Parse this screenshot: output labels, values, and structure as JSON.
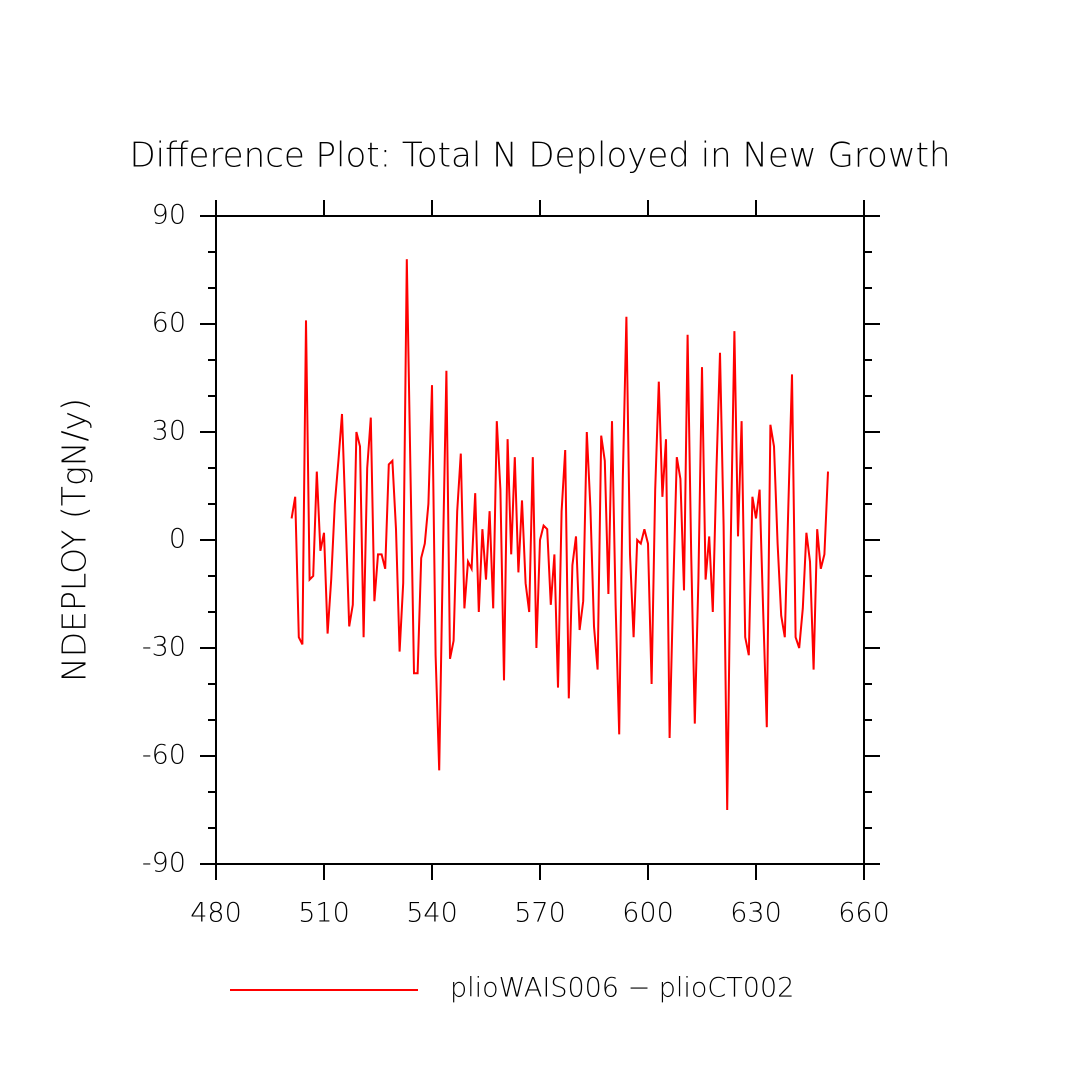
{
  "chart_data": {
    "type": "line",
    "title": "Difference Plot: Total N Deployed in New Growth",
    "y_label": "NDEPLOY  (TgN/y)",
    "xlim": [
      480,
      660
    ],
    "xticks": [
      480,
      510,
      540,
      570,
      600,
      630,
      660
    ],
    "ylim": [
      -90,
      90
    ],
    "yticks": [
      -90,
      -60,
      -30,
      0,
      30,
      60,
      90
    ],
    "x": [
      501,
      502,
      503,
      504,
      505,
      506,
      507,
      508,
      509,
      510,
      511,
      512,
      513,
      514,
      515,
      516,
      517,
      518,
      519,
      520,
      521,
      522,
      523,
      524,
      525,
      526,
      527,
      528,
      529,
      530,
      531,
      532,
      533,
      534,
      535,
      536,
      537,
      538,
      539,
      540,
      541,
      542,
      543,
      544,
      545,
      546,
      547,
      548,
      549,
      550,
      551,
      552,
      553,
      554,
      555,
      556,
      557,
      558,
      559,
      560,
      561,
      562,
      563,
      564,
      565,
      566,
      567,
      568,
      569,
      570,
      571,
      572,
      573,
      574,
      575,
      576,
      577,
      578,
      579,
      580,
      581,
      582,
      583,
      584,
      585,
      586,
      587,
      588,
      589,
      590,
      591,
      592,
      593,
      594,
      595,
      596,
      597,
      598,
      599,
      600,
      601,
      602,
      603,
      604,
      605,
      606,
      607,
      608,
      609,
      610,
      611,
      612,
      613,
      614,
      615,
      616,
      617,
      618,
      619,
      620,
      621,
      622,
      623,
      624,
      625,
      626,
      627,
      628,
      629,
      630,
      631,
      632,
      633,
      634,
      635,
      636,
      637,
      638,
      639,
      640,
      641,
      642,
      643,
      644,
      645,
      646,
      647,
      648,
      649,
      650
    ],
    "series": [
      {
        "name": "plioWAIS006 − plioCT002",
        "color": "#ff0000",
        "values": [
          6,
          12,
          -27,
          -29,
          61,
          -11,
          -10,
          19,
          -3,
          2,
          -26,
          -11,
          10,
          22,
          35,
          6,
          -24,
          -18,
          30,
          26,
          -27,
          20,
          34,
          -17,
          -4,
          -4,
          -8,
          21,
          22,
          3,
          -31,
          -12,
          78,
          20,
          -37,
          -37,
          -5,
          -1,
          10,
          43,
          -32,
          -64,
          -6,
          47,
          -33,
          -28,
          8,
          24,
          -19,
          -6,
          -8,
          13,
          -20,
          3,
          -11,
          8,
          -19,
          33,
          14,
          -39,
          28,
          -4,
          23,
          -9,
          11,
          -12,
          -20,
          23,
          -30,
          0,
          4,
          3,
          -18,
          -4,
          -41,
          8,
          25,
          -44,
          -7,
          1,
          -25,
          -17,
          30,
          9,
          -24,
          -36,
          29,
          22,
          -15,
          33,
          -18,
          -54,
          17,
          62,
          -4,
          -27,
          0,
          -1,
          3,
          -1,
          -40,
          14,
          44,
          12,
          28,
          -55,
          -14,
          23,
          17,
          -14,
          57,
          -4,
          -51,
          -11,
          48,
          -11,
          1,
          -20,
          19,
          52,
          4,
          -75,
          0,
          58,
          1,
          33,
          -27,
          -32,
          12,
          6,
          14,
          -20,
          -52,
          32,
          26,
          -1,
          -21,
          -27,
          10,
          46,
          -27,
          -30,
          -19,
          2,
          -6,
          -36,
          3,
          -8,
          -4,
          19
        ]
      }
    ]
  }
}
